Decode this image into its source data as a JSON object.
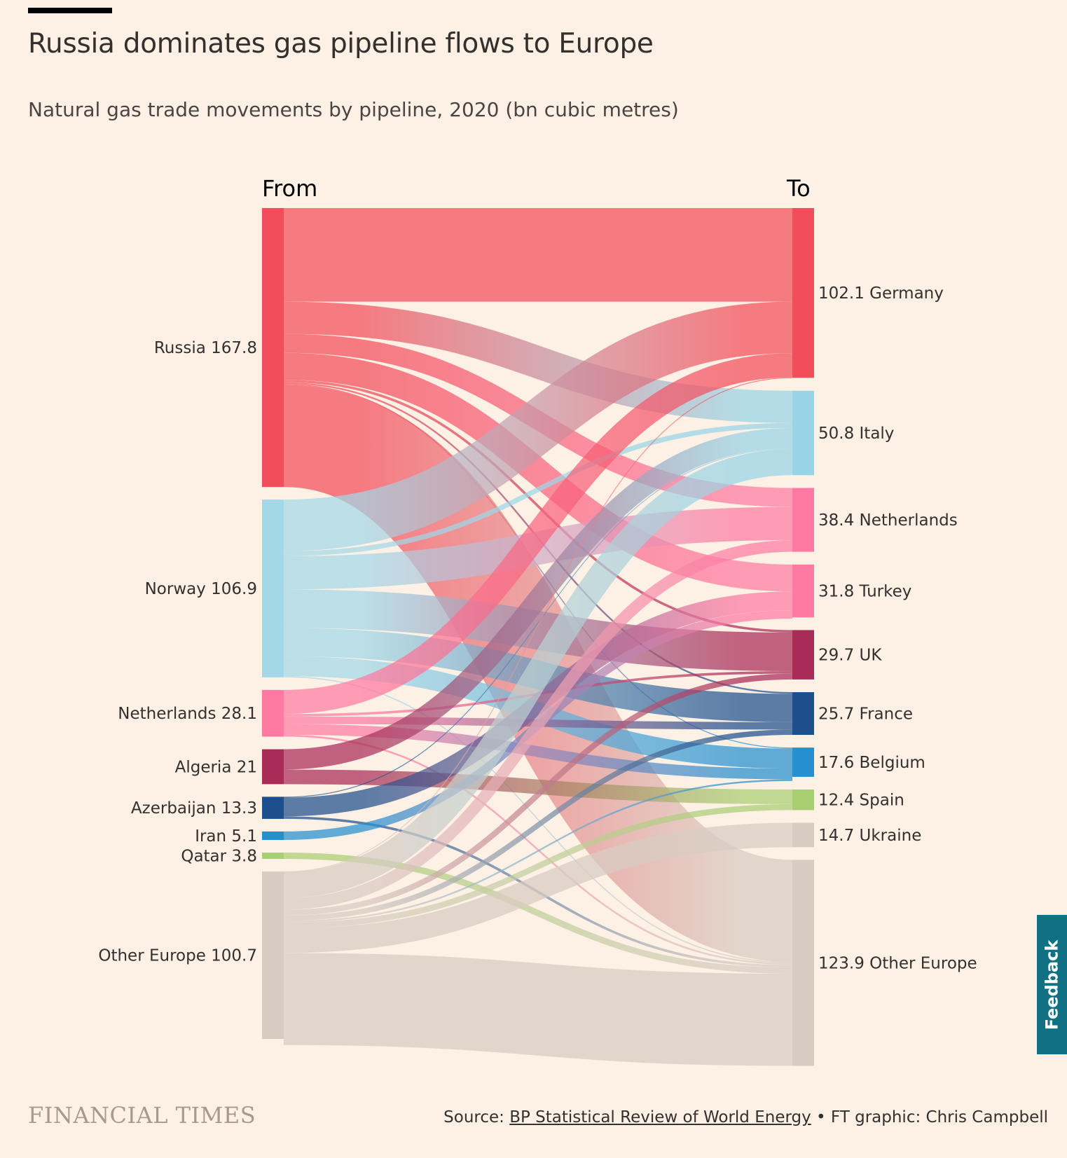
{
  "title": "Russia dominates gas pipeline flows to Europe",
  "subtitle": "Natural gas trade movements by pipeline, 2020 (bn cubic metres)",
  "source_prefix": "Source: ",
  "source_link": "BP Statistical Review of World Energy",
  "source_suffix": " • FT graphic: Chris Campbell",
  "logo": "FINANCIAL TIMES",
  "feedback": "Feedback",
  "chart_data": {
    "type": "sankey",
    "column_labels": {
      "from": "From",
      "to": "To"
    },
    "sources": [
      {
        "name": "Russia",
        "value": 167.8,
        "color": "#f24d5a"
      },
      {
        "name": "Norway",
        "value": 106.9,
        "color": "#a3d8e8"
      },
      {
        "name": "Netherlands",
        "value": 28.1,
        "color": "#ff7aa2"
      },
      {
        "name": "Algeria",
        "value": 21,
        "color": "#a92b57"
      },
      {
        "name": "Azerbaijan",
        "value": 13.3,
        "color": "#1d4f8c"
      },
      {
        "name": "Iran",
        "value": 5.1,
        "color": "#2490d0"
      },
      {
        "name": "Qatar",
        "value": 3.8,
        "color": "#a8cf72"
      },
      {
        "name": "Other Europe",
        "value": 100.7,
        "color": "#d8ccc2"
      }
    ],
    "targets": [
      {
        "name": "Germany",
        "value": 102.1,
        "color": "#f24d5a"
      },
      {
        "name": "Italy",
        "value": 50.8,
        "color": "#97d4e6"
      },
      {
        "name": "Netherlands",
        "value": 38.4,
        "color": "#ff7aa2"
      },
      {
        "name": "Turkey",
        "value": 31.8,
        "color": "#ff7aa2"
      },
      {
        "name": "UK",
        "value": 29.7,
        "color": "#a92b57"
      },
      {
        "name": "France",
        "value": 25.7,
        "color": "#1d4f8c"
      },
      {
        "name": "Belgium",
        "value": 17.6,
        "color": "#2490d0"
      },
      {
        "name": "Spain",
        "value": 12.4,
        "color": "#a8cf72"
      },
      {
        "name": "Ukraine",
        "value": 14.7,
        "color": "#d8ccc2"
      },
      {
        "name": "Other Europe",
        "value": 123.9,
        "color": "#d8ccc2"
      }
    ],
    "flows": [
      [
        "Russia",
        "Germany",
        56.3
      ],
      [
        "Russia",
        "Italy",
        19.4
      ],
      [
        "Russia",
        "Netherlands",
        11.4
      ],
      [
        "Russia",
        "Turkey",
        16.2
      ],
      [
        "Russia",
        "UK",
        1.5
      ],
      [
        "Russia",
        "France",
        1.0
      ],
      [
        "Russia",
        "Belgium",
        0.6
      ],
      [
        "Russia",
        "Other Europe",
        61.4
      ],
      [
        "Norway",
        "Germany",
        31.0
      ],
      [
        "Norway",
        "Italy",
        3.0
      ],
      [
        "Norway",
        "Netherlands",
        20.0
      ],
      [
        "Norway",
        "UK",
        23.2
      ],
      [
        "Norway",
        "France",
        17.0
      ],
      [
        "Norway",
        "Belgium",
        12.0
      ],
      [
        "Norway",
        "Other Europe",
        0.7
      ],
      [
        "Netherlands",
        "Germany",
        14.5
      ],
      [
        "Netherlands",
        "UK",
        1.5
      ],
      [
        "Netherlands",
        "France",
        4.5
      ],
      [
        "Netherlands",
        "Belgium",
        6.5
      ],
      [
        "Netherlands",
        "Other Europe",
        1.1
      ],
      [
        "Algeria",
        "Italy",
        12.2
      ],
      [
        "Algeria",
        "Spain",
        8.8
      ],
      [
        "Azerbaijan",
        "Italy",
        0.5
      ],
      [
        "Azerbaijan",
        "Turkey",
        11.3
      ],
      [
        "Azerbaijan",
        "Other Europe",
        1.5
      ],
      [
        "Iran",
        "Turkey",
        5.1
      ],
      [
        "Qatar",
        "Other Europe",
        3.8
      ],
      [
        "Other Europe",
        "Germany",
        0.3
      ],
      [
        "Other Europe",
        "Italy",
        15.7
      ],
      [
        "Other Europe",
        "Netherlands",
        7.0
      ],
      [
        "Other Europe",
        "UK",
        3.5
      ],
      [
        "Other Europe",
        "France",
        3.2
      ],
      [
        "Other Europe",
        "Belgium",
        1.0
      ],
      [
        "Other Europe",
        "Spain",
        3.6
      ],
      [
        "Other Europe",
        "Ukraine",
        14.7
      ],
      [
        "Other Europe",
        "Other Europe",
        55.4
      ]
    ]
  }
}
